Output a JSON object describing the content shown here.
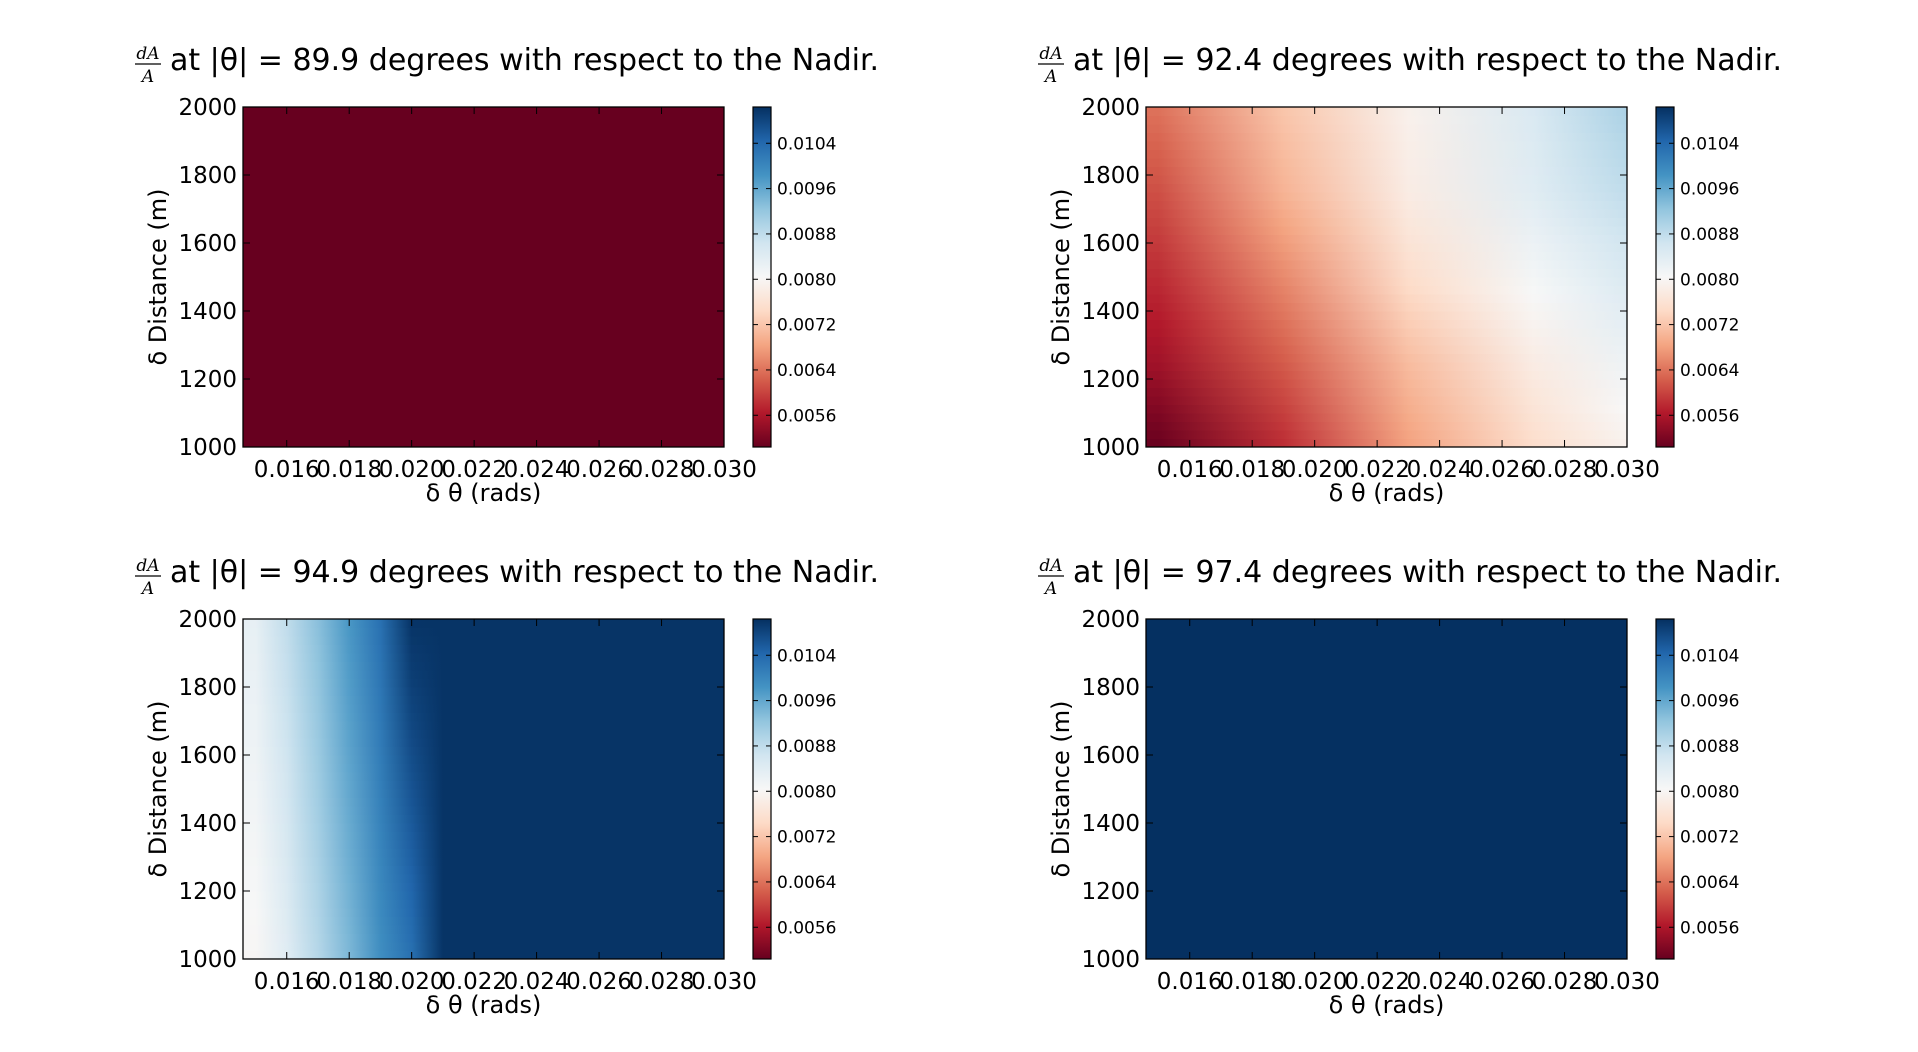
{
  "colormap": {
    "name": "RdBu",
    "stops": [
      "#67001f",
      "#b2182b",
      "#d6604d",
      "#f4a582",
      "#fddbc7",
      "#f7f7f7",
      "#d1e5f0",
      "#92c5de",
      "#4393c3",
      "#2166ac",
      "#053061"
    ]
  },
  "chart_data": [
    {
      "type": "heatmap",
      "title": "at |θ| = 89.9 degrees with respect to the Nadir.",
      "title_fraction": {
        "numerator": "dA",
        "denominator": "A"
      },
      "xlabel": "δ θ (rads)",
      "ylabel": "δ Distance (m)",
      "x_ticks": [
        "0.016",
        "0.018",
        "0.020",
        "0.022",
        "0.024",
        "0.026",
        "0.028",
        "0.030"
      ],
      "y_ticks": [
        "1000",
        "1200",
        "1400",
        "1600",
        "1800",
        "2000"
      ],
      "xlim": [
        0.0146,
        0.03
      ],
      "ylim": [
        1000,
        2000
      ],
      "colorbar": {
        "vmin": 0.00504,
        "vmax": 0.01104,
        "ticks": [
          "0.0056",
          "0.0064",
          "0.0072",
          "0.0080",
          "0.0088",
          "0.0096",
          "0.0104"
        ]
      },
      "grid": false,
      "x": [
        0.015,
        0.03
      ],
      "y": [
        1000,
        2000
      ],
      "z": [
        [
          0.00504,
          0.00504
        ],
        [
          0.00504,
          0.00504
        ]
      ]
    },
    {
      "type": "heatmap",
      "title": "at |θ| = 92.4 degrees with respect to the Nadir.",
      "title_fraction": {
        "numerator": "dA",
        "denominator": "A"
      },
      "xlabel": "δ θ (rads)",
      "ylabel": "δ Distance (m)",
      "x_ticks": [
        "0.016",
        "0.018",
        "0.020",
        "0.022",
        "0.024",
        "0.026",
        "0.028",
        "0.030"
      ],
      "y_ticks": [
        "1000",
        "1200",
        "1400",
        "1600",
        "1800",
        "2000"
      ],
      "xlim": [
        0.0146,
        0.03
      ],
      "ylim": [
        1000,
        2000
      ],
      "colorbar": {
        "vmin": 0.00504,
        "vmax": 0.01104,
        "ticks": [
          "0.0056",
          "0.0064",
          "0.0072",
          "0.0080",
          "0.0088",
          "0.0096",
          "0.0104"
        ]
      },
      "grid": false,
      "x": [
        0.015,
        0.019,
        0.023,
        0.027,
        0.03
      ],
      "y": [
        1000,
        1250,
        1500,
        1750,
        2000
      ],
      "z": [
        [
          0.00504,
          0.0058,
          0.0068,
          0.0075,
          0.0079
        ],
        [
          0.0055,
          0.0062,
          0.0071,
          0.0078,
          0.0082
        ],
        [
          0.0058,
          0.0066,
          0.0075,
          0.0081,
          0.0085
        ],
        [
          0.0061,
          0.007,
          0.0078,
          0.0084,
          0.0088
        ],
        [
          0.0064,
          0.0072,
          0.0079,
          0.0085,
          0.009
        ]
      ]
    },
    {
      "type": "heatmap",
      "title": "at |θ| = 94.9 degrees with respect to the Nadir.",
      "title_fraction": {
        "numerator": "dA",
        "denominator": "A"
      },
      "xlabel": "δ θ (rads)",
      "ylabel": "δ Distance (m)",
      "x_ticks": [
        "0.016",
        "0.018",
        "0.020",
        "0.022",
        "0.024",
        "0.026",
        "0.028",
        "0.030"
      ],
      "y_ticks": [
        "1000",
        "1200",
        "1400",
        "1600",
        "1800",
        "2000"
      ],
      "xlim": [
        0.0146,
        0.03
      ],
      "ylim": [
        1000,
        2000
      ],
      "colorbar": {
        "vmin": 0.00504,
        "vmax": 0.01104,
        "ticks": [
          "0.0056",
          "0.0064",
          "0.0072",
          "0.0080",
          "0.0088",
          "0.0096",
          "0.0104"
        ]
      },
      "grid": false,
      "x": [
        0.015,
        0.016,
        0.017,
        0.018,
        0.019,
        0.02,
        0.021,
        0.025,
        0.03
      ],
      "y": [
        1000,
        2000
      ],
      "z": [
        [
          0.008,
          0.0084,
          0.0089,
          0.0094,
          0.0099,
          0.0103,
          0.011,
          0.011,
          0.011
        ],
        [
          0.0083,
          0.0088,
          0.0093,
          0.0098,
          0.0103,
          0.011,
          0.011,
          0.011,
          0.011
        ]
      ]
    },
    {
      "type": "heatmap",
      "title": "at |θ| = 97.4 degrees with respect to the Nadir.",
      "title_fraction": {
        "numerator": "dA",
        "denominator": "A"
      },
      "xlabel": "δ θ (rads)",
      "ylabel": "δ Distance (m)",
      "x_ticks": [
        "0.016",
        "0.018",
        "0.020",
        "0.022",
        "0.024",
        "0.026",
        "0.028",
        "0.030"
      ],
      "y_ticks": [
        "1000",
        "1200",
        "1400",
        "1600",
        "1800",
        "2000"
      ],
      "xlim": [
        0.0146,
        0.03
      ],
      "ylim": [
        1000,
        2000
      ],
      "colorbar": {
        "vmin": 0.00504,
        "vmax": 0.01104,
        "ticks": [
          "0.0056",
          "0.0064",
          "0.0072",
          "0.0080",
          "0.0088",
          "0.0096",
          "0.0104"
        ]
      },
      "grid": false,
      "x": [
        0.015,
        0.03
      ],
      "y": [
        1000,
        2000
      ],
      "z": [
        [
          0.01104,
          0.01104
        ],
        [
          0.01104,
          0.01104
        ]
      ]
    }
  ]
}
